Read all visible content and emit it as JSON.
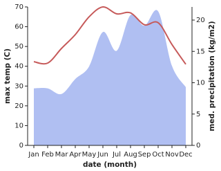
{
  "chart_data": {
    "type": "line",
    "x_label": "date (month)",
    "y_label": "max temp (C)",
    "y2_label": "med. precipitation (kg/m2)",
    "categories": [
      "Jan",
      "Feb",
      "Mar",
      "Apr",
      "May",
      "Jun",
      "Jul",
      "Aug",
      "Sep",
      "Oct",
      "Nov",
      "Dec"
    ],
    "ylim": [
      0,
      70
    ],
    "yticks": [
      0,
      10,
      20,
      30,
      40,
      50,
      60,
      70
    ],
    "y2lim": [
      0,
      22.1
    ],
    "y2ticks": [
      0,
      5,
      10,
      15,
      20
    ],
    "series": [
      {
        "name": "med. precipitation",
        "type": "area",
        "axis": "y2",
        "color": "#b0bff2",
        "values": [
          9.1,
          9.1,
          8.2,
          10.6,
          12.6,
          18.1,
          15.1,
          20.8,
          19.1,
          21.4,
          12.7,
          9.3
        ]
      },
      {
        "name": "max temp",
        "type": "line",
        "color": "#c65a5a",
        "values": [
          42.3,
          41.6,
          49,
          56,
          65,
          70,
          66.5,
          67,
          61,
          62,
          51,
          41
        ]
      }
    ]
  }
}
